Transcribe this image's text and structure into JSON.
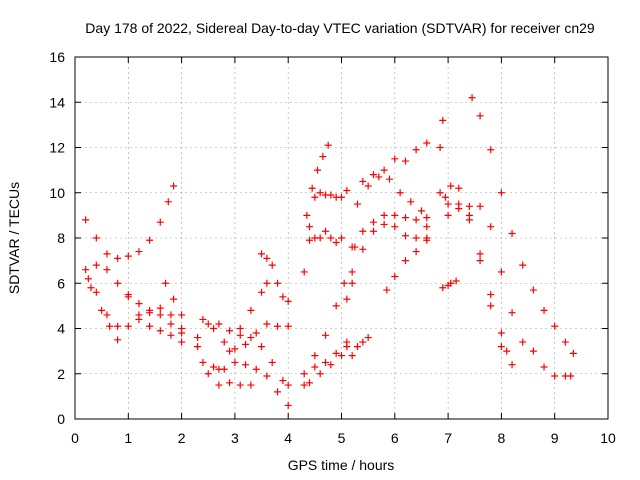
{
  "chart_data": {
    "type": "scatter",
    "title": "Day 178 of 2022, Sidereal Day-to-day VTEC variation (SDTVAR) for receiver cn29",
    "xlabel": "GPS time / hours",
    "ylabel": "SDTVAR / TECUs",
    "xlim": [
      0,
      10
    ],
    "ylim": [
      0,
      16
    ],
    "x_ticks": [
      "0",
      "1",
      "2",
      "3",
      "4",
      "5",
      "6",
      "7",
      "8",
      "9",
      "10"
    ],
    "y_ticks": [
      "0",
      "2",
      "4",
      "6",
      "8",
      "10",
      "12",
      "14",
      "16"
    ],
    "grid": true,
    "marker": "+",
    "color": "#ff0000",
    "series": [
      {
        "name": "track-1",
        "x": [
          0.2,
          0.4,
          0.6,
          0.8,
          1.0,
          1.2,
          1.4,
          1.6,
          1.75,
          1.85
        ],
        "y": [
          8.8,
          8.0,
          7.3,
          7.1,
          7.2,
          7.4,
          7.9,
          8.7,
          9.6,
          10.3
        ]
      },
      {
        "name": "track-2",
        "x": [
          0.2,
          0.4,
          0.6,
          0.8,
          1.0,
          1.2,
          1.4,
          1.6,
          1.8,
          2.0
        ],
        "y": [
          6.6,
          6.8,
          6.6,
          6.0,
          5.5,
          5.1,
          4.8,
          4.6,
          4.2,
          3.8
        ]
      },
      {
        "name": "track-3",
        "x": [
          0.25,
          0.4,
          0.6,
          0.8,
          1.0,
          1.2,
          1.4,
          1.6,
          1.8,
          2.0
        ],
        "y": [
          6.2,
          5.6,
          4.6,
          4.1,
          4.1,
          4.4,
          4.7,
          4.9,
          4.6,
          4.0
        ]
      },
      {
        "name": "track-4",
        "x": [
          0.3,
          0.5,
          0.65,
          0.8
        ],
        "y": [
          5.8,
          4.8,
          4.1,
          3.5
        ]
      },
      {
        "name": "track-5",
        "x": [
          1.0,
          1.2,
          1.4,
          1.6,
          1.8,
          2.0
        ],
        "y": [
          5.4,
          4.6,
          4.1,
          3.9,
          3.7,
          3.4
        ]
      },
      {
        "name": "track-6",
        "x": [
          1.7,
          1.85,
          2.0
        ],
        "y": [
          6.0,
          5.3,
          4.6
        ]
      },
      {
        "name": "track-7",
        "x": [
          2.3,
          2.5,
          2.7,
          2.9,
          3.1,
          3.3,
          3.5,
          3.7,
          3.9,
          4.0
        ],
        "y": [
          3.6,
          4.2,
          4.2,
          3.9,
          3.7,
          3.6,
          3.2,
          2.5,
          1.7,
          1.5
        ]
      },
      {
        "name": "track-8",
        "x": [
          2.4,
          2.6,
          2.8,
          3.0,
          3.2,
          3.4,
          3.6,
          3.8,
          4.0
        ],
        "y": [
          2.5,
          2.3,
          2.2,
          2.5,
          2.4,
          2.2,
          1.9,
          1.2,
          0.6
        ]
      },
      {
        "name": "track-9",
        "x": [
          2.4,
          2.6,
          2.8,
          3.0,
          3.2,
          3.4,
          3.6,
          3.8,
          4.0
        ],
        "y": [
          4.4,
          4.0,
          3.4,
          3.1,
          3.3,
          3.8,
          4.2,
          4.1,
          4.1
        ]
      },
      {
        "name": "track-10",
        "x": [
          2.3,
          2.5,
          2.7,
          2.9,
          3.1,
          3.3
        ],
        "y": [
          3.2,
          2.0,
          1.5,
          1.6,
          1.5,
          1.5
        ]
      },
      {
        "name": "track-11",
        "x": [
          3.5,
          3.6,
          3.7,
          3.8,
          3.9,
          4.0
        ],
        "y": [
          7.3,
          7.1,
          6.8,
          6.0,
          5.4,
          5.2
        ]
      },
      {
        "name": "track-12",
        "x": [
          2.7,
          2.9,
          3.1,
          3.3,
          3.5,
          3.6
        ],
        "y": [
          2.2,
          3.0,
          4.0,
          4.8,
          5.6,
          6.0
        ]
      },
      {
        "name": "track-13",
        "x": [
          4.3,
          4.4,
          4.5,
          4.6,
          4.7,
          4.8,
          4.9,
          5.0
        ],
        "y": [
          6.5,
          7.9,
          8.0,
          8.0,
          8.3,
          8.0,
          7.8,
          8.0
        ]
      },
      {
        "name": "track-14",
        "x": [
          4.4,
          4.5,
          4.6,
          4.7,
          4.8,
          4.9,
          5.0,
          5.1
        ],
        "y": [
          8.5,
          9.8,
          10.0,
          9.9,
          9.9,
          9.8,
          9.8,
          10.1
        ]
      },
      {
        "name": "track-15",
        "x": [
          4.35,
          4.45,
          4.55,
          4.65,
          4.75
        ],
        "y": [
          9.0,
          10.2,
          11.0,
          11.6,
          12.1
        ]
      },
      {
        "name": "track-16",
        "x": [
          4.3,
          4.5,
          4.7,
          4.9,
          5.05
        ],
        "y": [
          1.5,
          2.8,
          3.7,
          5.0,
          6.0
        ]
      },
      {
        "name": "track-17",
        "x": [
          4.3,
          4.5,
          4.7,
          4.9,
          5.1
        ],
        "y": [
          2.0,
          2.3,
          2.5,
          2.9,
          3.2
        ]
      },
      {
        "name": "track-18",
        "x": [
          4.4,
          4.6,
          4.8,
          5.0,
          5.1
        ],
        "y": [
          1.6,
          2.0,
          2.4,
          2.8,
          3.4
        ]
      },
      {
        "name": "track-19",
        "x": [
          5.2,
          5.3,
          5.4,
          5.5
        ],
        "y": [
          2.8,
          3.2,
          3.4,
          3.6
        ]
      },
      {
        "name": "track-20",
        "x": [
          5.2,
          5.4,
          5.6,
          5.8,
          6.0,
          6.2,
          6.4,
          6.6
        ],
        "y": [
          7.6,
          8.3,
          8.7,
          9.0,
          9.0,
          8.9,
          8.8,
          8.5
        ]
      },
      {
        "name": "track-21",
        "x": [
          5.3,
          5.5,
          5.7,
          5.9,
          6.1,
          6.3,
          6.5,
          6.6
        ],
        "y": [
          9.5,
          10.3,
          10.7,
          10.6,
          10.0,
          9.6,
          9.2,
          8.9
        ]
      },
      {
        "name": "track-22",
        "x": [
          5.4,
          5.6,
          5.8,
          6.0,
          6.2,
          6.4,
          6.6
        ],
        "y": [
          10.5,
          10.8,
          11.0,
          11.5,
          11.4,
          11.9,
          12.2
        ]
      },
      {
        "name": "track-23",
        "x": [
          5.2,
          5.4,
          5.6,
          5.8,
          6.0,
          6.2,
          6.4,
          6.6
        ],
        "y": [
          6.0,
          7.5,
          8.3,
          8.6,
          8.5,
          8.1,
          8.0,
          8.0
        ]
      },
      {
        "name": "track-24",
        "x": [
          5.85,
          6.0,
          6.2,
          6.4,
          6.6
        ],
        "y": [
          5.7,
          6.3,
          7.0,
          7.4,
          7.9
        ]
      },
      {
        "name": "track-25",
        "x": [
          5.1,
          5.2,
          5.25
        ],
        "y": [
          5.3,
          6.5,
          7.6
        ]
      },
      {
        "name": "track-26",
        "x": [
          6.85,
          6.9,
          7.0,
          7.2,
          7.4,
          7.6,
          7.8,
          8.0,
          8.2
        ],
        "y": [
          12.0,
          13.2,
          9.5,
          9.3,
          8.8,
          7.0,
          5.0,
          3.2,
          2.4
        ]
      },
      {
        "name": "track-27",
        "x": [
          6.85,
          7.0,
          7.2,
          7.4,
          7.6,
          7.8,
          8.0,
          8.1
        ],
        "y": [
          10.0,
          9.0,
          9.5,
          9.0,
          7.3,
          5.5,
          3.8,
          3.0
        ]
      },
      {
        "name": "track-28",
        "x": [
          6.95,
          7.05,
          7.2,
          7.4,
          7.6,
          7.8,
          8.0,
          8.2,
          8.4,
          8.6,
          8.8,
          9.0,
          9.2,
          9.3
        ],
        "y": [
          9.8,
          10.3,
          10.2,
          9.4,
          9.4,
          8.5,
          6.5,
          4.7,
          3.4,
          3.0,
          2.3,
          1.9,
          1.9,
          1.9
        ]
      },
      {
        "name": "track-29",
        "x": [
          6.9,
          7.0,
          7.05,
          7.15
        ],
        "y": [
          5.8,
          5.9,
          6.0,
          6.1
        ]
      },
      {
        "name": "track-30",
        "x": [
          7.45,
          7.6,
          7.8,
          8.0,
          8.2,
          8.4,
          8.6,
          8.8,
          9.0,
          9.2,
          9.35
        ],
        "y": [
          14.2,
          13.4,
          11.9,
          10.0,
          8.2,
          6.8,
          5.7,
          4.8,
          4.1,
          3.4,
          2.9
        ]
      }
    ]
  }
}
